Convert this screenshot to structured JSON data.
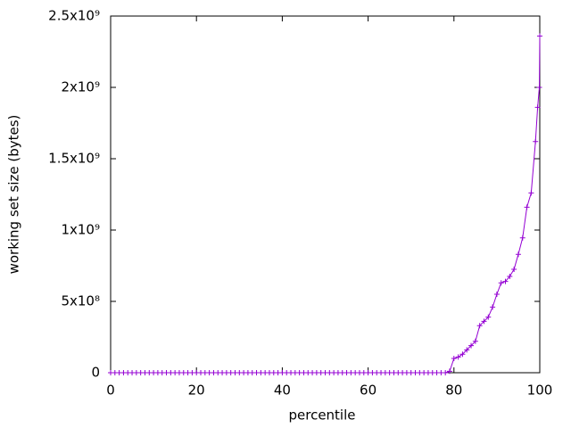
{
  "chart_data": {
    "type": "line",
    "xlabel": "percentile",
    "ylabel": "working set size (bytes)",
    "x": [
      0,
      1,
      2,
      3,
      4,
      5,
      6,
      7,
      8,
      9,
      10,
      11,
      12,
      13,
      14,
      15,
      16,
      17,
      18,
      19,
      20,
      21,
      22,
      23,
      24,
      25,
      26,
      27,
      28,
      29,
      30,
      31,
      32,
      33,
      34,
      35,
      36,
      37,
      38,
      39,
      40,
      41,
      42,
      43,
      44,
      45,
      46,
      47,
      48,
      49,
      50,
      51,
      52,
      53,
      54,
      55,
      56,
      57,
      58,
      59,
      60,
      61,
      62,
      63,
      64,
      65,
      66,
      67,
      68,
      69,
      70,
      71,
      72,
      73,
      74,
      75,
      76,
      77,
      78,
      79,
      80,
      81,
      82,
      83,
      84,
      85,
      86,
      87,
      88,
      89,
      90,
      91,
      92,
      93,
      94,
      95,
      96,
      97,
      98,
      99,
      99.5,
      99.9,
      100
    ],
    "series": [
      {
        "color": "#9400d3",
        "values": [
          0,
          0,
          0,
          0,
          0,
          0,
          0,
          0,
          0,
          0,
          0,
          0,
          0,
          0,
          0,
          0,
          0,
          0,
          0,
          0,
          0,
          0,
          0,
          0,
          0,
          0,
          0,
          0,
          0,
          0,
          0,
          0,
          0,
          0,
          0,
          0,
          0,
          0,
          0,
          0,
          0,
          0,
          0,
          0,
          0,
          0,
          0,
          0,
          0,
          0,
          0,
          0,
          0,
          0,
          0,
          0,
          0,
          0,
          0,
          0,
          0,
          0,
          0,
          0,
          0,
          0,
          0,
          0,
          0,
          0,
          0,
          0,
          0,
          0,
          0,
          0,
          0,
          0,
          0,
          10000000,
          100000000,
          110000000,
          130000000,
          160000000,
          190000000,
          220000000,
          330000000,
          360000000,
          390000000,
          460000000,
          550000000,
          630000000,
          640000000,
          675000000,
          725000000,
          830000000,
          945000000,
          1160000000,
          1260000000,
          1620000000,
          1860000000,
          2000000000,
          2360000000
        ]
      }
    ],
    "xlim": [
      0,
      100
    ],
    "xticks": [
      0,
      20,
      40,
      60,
      80,
      100
    ],
    "ylim": [
      0,
      2500000000
    ],
    "yticks": [
      0,
      {
        "value": 500000000,
        "label": "5x10⁸"
      },
      {
        "value": 1000000000,
        "label": "1x10⁹"
      },
      {
        "value": 1500000000,
        "label": "1.5x10⁹"
      },
      {
        "value": 2000000000,
        "label": "2x10⁹"
      },
      {
        "value": 2500000000,
        "label": "2.5x10⁹"
      }
    ]
  }
}
